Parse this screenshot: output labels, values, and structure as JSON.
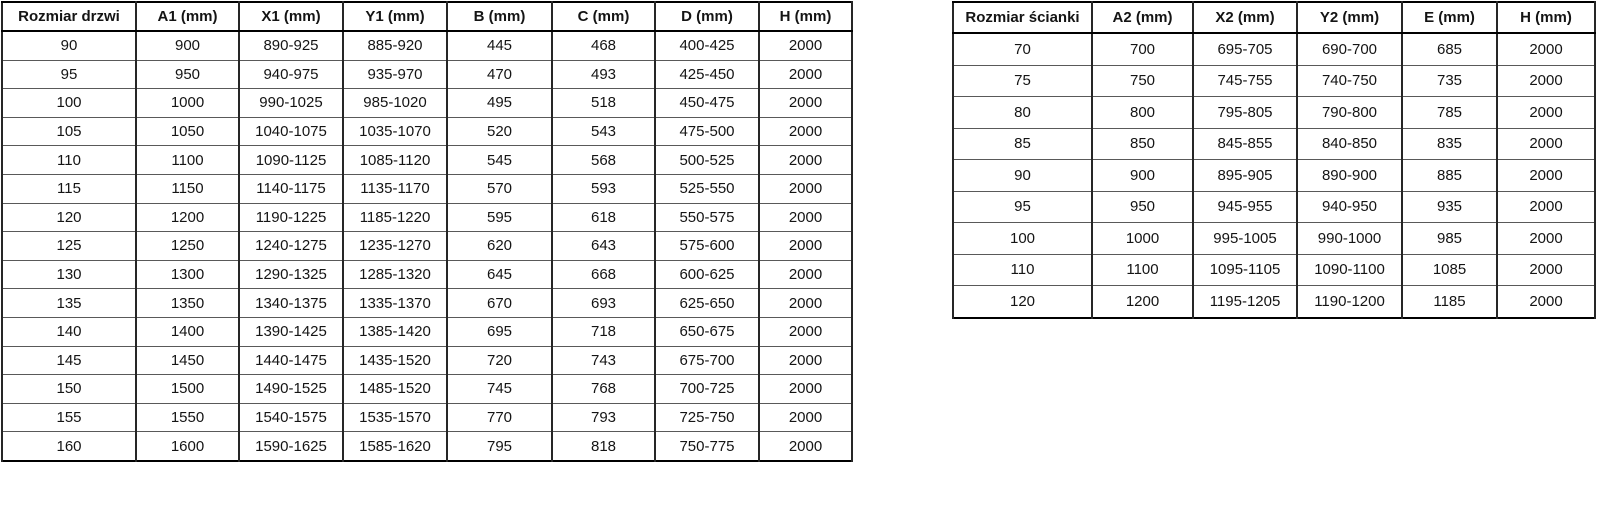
{
  "colors": {
    "background": "#ffffff",
    "text": "#141414",
    "border_outer": "#000000",
    "border_inner_vertical": "#262626",
    "border_inner_horizontal": "#595959"
  },
  "tables": [
    {
      "id": "door-sizes",
      "headers": [
        "Rozmiar drzwi",
        "A1 (mm)",
        "X1 (mm)",
        "Y1 (mm)",
        "B (mm)",
        "C (mm)",
        "D (mm)",
        "H (mm)"
      ],
      "rows": [
        [
          "90",
          "900",
          "890-925",
          "885-920",
          "445",
          "468",
          "400-425",
          "2000"
        ],
        [
          "95",
          "950",
          "940-975",
          "935-970",
          "470",
          "493",
          "425-450",
          "2000"
        ],
        [
          "100",
          "1000",
          "990-1025",
          "985-1020",
          "495",
          "518",
          "450-475",
          "2000"
        ],
        [
          "105",
          "1050",
          "1040-1075",
          "1035-1070",
          "520",
          "543",
          "475-500",
          "2000"
        ],
        [
          "110",
          "1100",
          "1090-1125",
          "1085-1120",
          "545",
          "568",
          "500-525",
          "2000"
        ],
        [
          "115",
          "1150",
          "1140-1175",
          "1135-1170",
          "570",
          "593",
          "525-550",
          "2000"
        ],
        [
          "120",
          "1200",
          "1190-1225",
          "1185-1220",
          "595",
          "618",
          "550-575",
          "2000"
        ],
        [
          "125",
          "1250",
          "1240-1275",
          "1235-1270",
          "620",
          "643",
          "575-600",
          "2000"
        ],
        [
          "130",
          "1300",
          "1290-1325",
          "1285-1320",
          "645",
          "668",
          "600-625",
          "2000"
        ],
        [
          "135",
          "1350",
          "1340-1375",
          "1335-1370",
          "670",
          "693",
          "625-650",
          "2000"
        ],
        [
          "140",
          "1400",
          "1390-1425",
          "1385-1420",
          "695",
          "718",
          "650-675",
          "2000"
        ],
        [
          "145",
          "1450",
          "1440-1475",
          "1435-1520",
          "720",
          "743",
          "675-700",
          "2000"
        ],
        [
          "150",
          "1500",
          "1490-1525",
          "1485-1520",
          "745",
          "768",
          "700-725",
          "2000"
        ],
        [
          "155",
          "1550",
          "1540-1575",
          "1535-1570",
          "770",
          "793",
          "725-750",
          "2000"
        ],
        [
          "160",
          "1600",
          "1590-1625",
          "1585-1620",
          "795",
          "818",
          "750-775",
          "2000"
        ]
      ]
    },
    {
      "id": "wall-panel-sizes",
      "headers": [
        "Rozmiar ścianki",
        "A2 (mm)",
        "X2 (mm)",
        "Y2 (mm)",
        "E (mm)",
        "H (mm)"
      ],
      "rows": [
        [
          "70",
          "700",
          "695-705",
          "690-700",
          "685",
          "2000"
        ],
        [
          "75",
          "750",
          "745-755",
          "740-750",
          "735",
          "2000"
        ],
        [
          "80",
          "800",
          "795-805",
          "790-800",
          "785",
          "2000"
        ],
        [
          "85",
          "850",
          "845-855",
          "840-850",
          "835",
          "2000"
        ],
        [
          "90",
          "900",
          "895-905",
          "890-900",
          "885",
          "2000"
        ],
        [
          "95",
          "950",
          "945-955",
          "940-950",
          "935",
          "2000"
        ],
        [
          "100",
          "1000",
          "995-1005",
          "990-1000",
          "985",
          "2000"
        ],
        [
          "110",
          "1100",
          "1095-1105",
          "1090-1100",
          "1085",
          "2000"
        ],
        [
          "120",
          "1200",
          "1195-1205",
          "1190-1200",
          "1185",
          "2000"
        ]
      ]
    }
  ]
}
